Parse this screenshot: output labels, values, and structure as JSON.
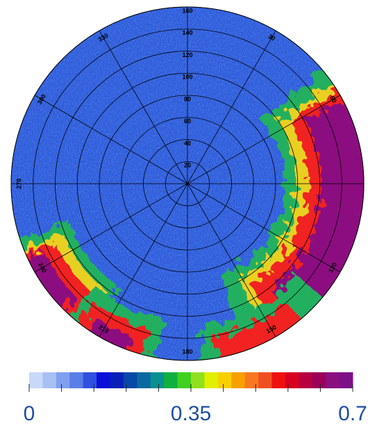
{
  "chart_data": {
    "type": "polar",
    "rlim": [
      0,
      160
    ],
    "rticks": [
      20,
      40,
      60,
      80,
      100,
      120,
      140,
      160
    ],
    "thetaticks": [
      {
        "value": 0,
        "label": null
      },
      30,
      60,
      {
        "value": 90,
        "label": null
      },
      120,
      150,
      180,
      210,
      240,
      270,
      300,
      330
    ],
    "theta_direction": "clockwise",
    "theta_zero": "north",
    "grid": true,
    "colorbar": {
      "lim": [
        0,
        0.7
      ],
      "ticks": [
        0,
        0.35,
        0.7
      ],
      "minor_ticks": [
        0,
        0.07,
        0.14,
        0.21,
        0.28,
        0.35,
        0.42,
        0.49,
        0.56,
        0.63,
        0.7
      ],
      "colors": [
        "#c8d8f8",
        "#a8c0f4",
        "#7f9ff0",
        "#5a7ee8",
        "#3050e0",
        "#0a10d8",
        "#0820b8",
        "#0848a8",
        "#0a6aa0",
        "#0a9090",
        "#10b040",
        "#40d020",
        "#90e020",
        "#e0f000",
        "#f8d000",
        "#f8a000",
        "#f87820",
        "#f05020",
        "#f01010",
        "#d80020",
        "#b80040",
        "#9c0058",
        "#8a1080",
        "#7c1088"
      ]
    }
  }
}
